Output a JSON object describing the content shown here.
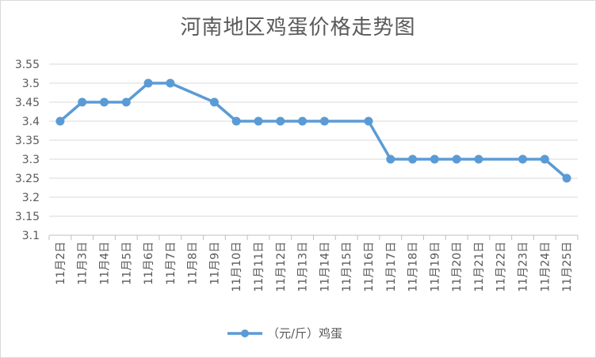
{
  "chart_data": {
    "type": "line",
    "title": "河南地区鸡蛋价格走势图",
    "xlabel": "",
    "ylabel": "",
    "categories": [
      "11月2日",
      "11月3日",
      "11月4日",
      "11月5日",
      "11月6日",
      "11月7日",
      "11月8日",
      "11月9日",
      "11月10日",
      "11月11日",
      "11月12日",
      "11月13日",
      "11月14日",
      "11月15日",
      "11月16日",
      "11月17日",
      "11月18日",
      "11月19日",
      "11月20日",
      "11月21日",
      "11月22日",
      "11月23日",
      "11月24日",
      "11月25日"
    ],
    "series": [
      {
        "name": "（元/斤）鸡蛋",
        "color": "#5b9bd5",
        "values": [
          3.4,
          3.45,
          3.45,
          3.45,
          3.5,
          3.5,
          null,
          3.45,
          3.4,
          3.4,
          3.4,
          3.4,
          3.4,
          null,
          3.4,
          3.3,
          3.3,
          3.3,
          3.3,
          3.3,
          null,
          3.3,
          3.3,
          3.25
        ]
      }
    ],
    "yticks": [
      "3.1",
      "3.15",
      "3.2",
      "3.25",
      "3.3",
      "3.35",
      "3.4",
      "3.45",
      "3.5",
      "3.55"
    ],
    "ylim": [
      3.1,
      3.55
    ],
    "grid": true,
    "legend_position": "bottom",
    "gridline_color": "#d9d9d9",
    "axis_color": "#bfbfbf"
  }
}
